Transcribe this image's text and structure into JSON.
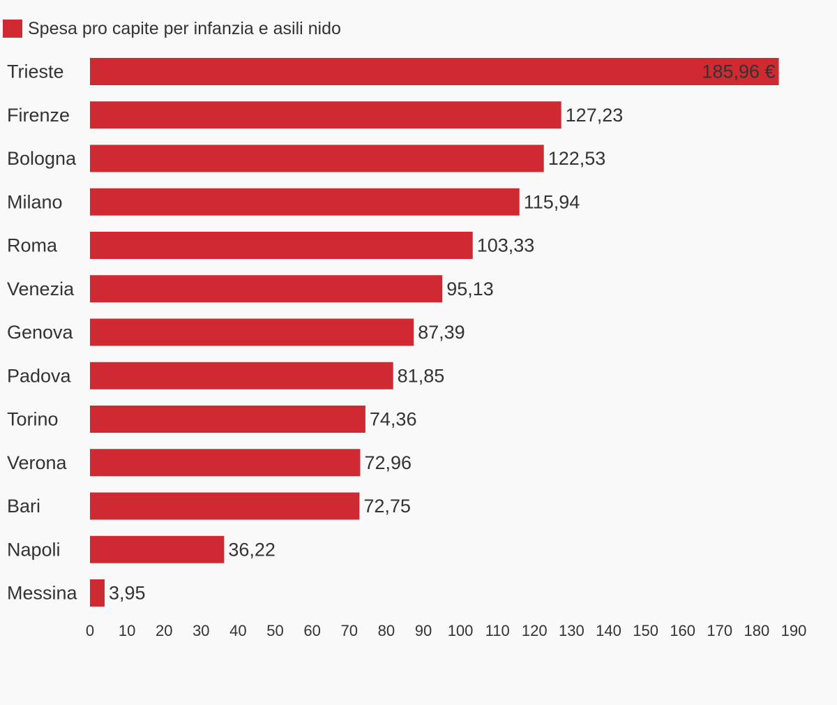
{
  "chart_data": {
    "type": "bar",
    "orientation": "horizontal",
    "legend_position": "top-left",
    "grid": false,
    "color": "#cf2a31",
    "text_color": "#333333",
    "xlim": [
      0,
      190
    ],
    "x_ticks": [
      "0",
      "10",
      "20",
      "30",
      "40",
      "50",
      "60",
      "70",
      "80",
      "90",
      "100",
      "110",
      "120",
      "130",
      "140",
      "150",
      "160",
      "170",
      "180",
      "190"
    ],
    "series": [
      {
        "name": "Spesa pro capite per infanzia e asili nido",
        "values": [
          185.96,
          127.23,
          122.53,
          115.94,
          103.33,
          95.13,
          87.39,
          81.85,
          74.36,
          72.96,
          72.75,
          36.22,
          3.95
        ]
      }
    ],
    "categories": [
      "Trieste",
      "Firenze",
      "Bologna",
      "Milano",
      "Roma",
      "Venezia",
      "Genova",
      "Padova",
      "Torino",
      "Verona",
      "Bari",
      "Napoli",
      "Messina"
    ],
    "data_labels": [
      "185,96 €",
      "127,23",
      "122,53",
      "115,94",
      "103,33",
      "95,13",
      "87,39",
      "81,85",
      "74,36",
      "72,96",
      "72,75",
      "36,22",
      "3,95"
    ]
  }
}
